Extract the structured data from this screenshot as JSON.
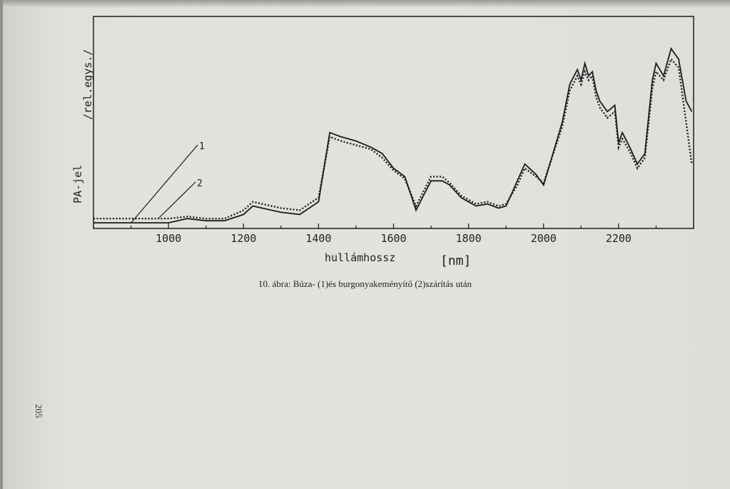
{
  "chart_data": {
    "type": "line",
    "xlabel": "hullámhossz",
    "xunit": "[nm]",
    "ylabel_left": "PA-jel",
    "ylabel_right": "/rel.egys./",
    "xlim": [
      800,
      2400
    ],
    "ylim": [
      0,
      100
    ],
    "xticks": [
      "1000",
      "1200",
      "1400",
      "1600",
      "1800",
      "2000",
      "2200"
    ],
    "grid": false,
    "curve_labels": [
      "1",
      "2"
    ],
    "series": [
      {
        "name": "1",
        "style": "solid",
        "x": [
          800,
          900,
          950,
          1000,
          1050,
          1100,
          1150,
          1200,
          1225,
          1250,
          1300,
          1350,
          1400,
          1430,
          1460,
          1480,
          1500,
          1540,
          1570,
          1600,
          1630,
          1660,
          1680,
          1700,
          1730,
          1750,
          1780,
          1800,
          1820,
          1850,
          1880,
          1900,
          1930,
          1950,
          1980,
          2000,
          2050,
          2070,
          2090,
          2100,
          2110,
          2120,
          2130,
          2140,
          2150,
          2170,
          2190,
          2200,
          2210,
          2230,
          2250,
          2270,
          2290,
          2300,
          2320,
          2340,
          2360,
          2380,
          2395
        ],
        "y": [
          2,
          2,
          2,
          2,
          4,
          3,
          3,
          6,
          10,
          9,
          7,
          6,
          12,
          45,
          43,
          42,
          41,
          38,
          35,
          28,
          24,
          8,
          15,
          22,
          22,
          20,
          14,
          12,
          10,
          11,
          9,
          10,
          22,
          30,
          25,
          20,
          50,
          68,
          75,
          70,
          78,
          72,
          74,
          65,
          60,
          55,
          58,
          40,
          45,
          38,
          30,
          35,
          70,
          78,
          72,
          85,
          80,
          60,
          55
        ]
      },
      {
        "name": "2",
        "style": "dotted",
        "x": [
          800,
          900,
          950,
          1000,
          1050,
          1100,
          1150,
          1200,
          1225,
          1250,
          1300,
          1350,
          1400,
          1430,
          1460,
          1480,
          1500,
          1540,
          1570,
          1600,
          1630,
          1660,
          1680,
          1700,
          1730,
          1750,
          1780,
          1800,
          1820,
          1850,
          1880,
          1900,
          1930,
          1950,
          1980,
          2000,
          2050,
          2070,
          2090,
          2100,
          2110,
          2120,
          2130,
          2140,
          2150,
          2170,
          2190,
          2200,
          2210,
          2230,
          2250,
          2270,
          2290,
          2300,
          2320,
          2340,
          2360,
          2380,
          2395
        ],
        "y": [
          4,
          4,
          4,
          4,
          5,
          4,
          4,
          8,
          12,
          11,
          9,
          8,
          14,
          43,
          41,
          40,
          39,
          37,
          33,
          27,
          23,
          10,
          17,
          24,
          24,
          21,
          15,
          13,
          11,
          12,
          10,
          11,
          20,
          28,
          24,
          21,
          48,
          65,
          72,
          68,
          74,
          70,
          72,
          62,
          57,
          52,
          55,
          38,
          42,
          36,
          28,
          33,
          66,
          74,
          70,
          80,
          76,
          50,
          30
        ]
      }
    ]
  },
  "caption": "10. ábra: Búza- (1)és burgonyakeményítő (2)szárítás után",
  "page_number": "205"
}
